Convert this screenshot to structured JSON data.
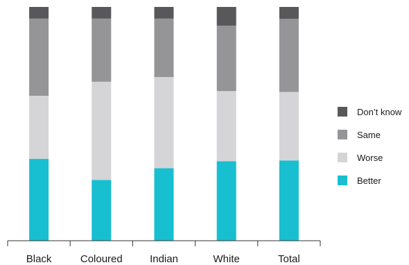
{
  "chart_data": {
    "type": "bar",
    "stacked": true,
    "percent_stacked": true,
    "categories": [
      "Black",
      "Coloured",
      "Indian",
      "White",
      "Total"
    ],
    "series": [
      {
        "name": "Better",
        "color": "#17bfd1",
        "values": [
          35,
          26,
          31,
          34,
          34
        ]
      },
      {
        "name": "Worse",
        "color": "#d5d5d7",
        "values": [
          27,
          42,
          39,
          30,
          29
        ]
      },
      {
        "name": "Same",
        "color": "#959597",
        "values": [
          33,
          27,
          25,
          28,
          31
        ]
      },
      {
        "name": "Don’t know",
        "color": "#58585a",
        "values": [
          5,
          5,
          5,
          8,
          5
        ]
      }
    ],
    "title": "",
    "xlabel": "",
    "ylabel": "",
    "ylim": [
      0,
      100
    ],
    "grid": false,
    "legend_position": "right"
  }
}
